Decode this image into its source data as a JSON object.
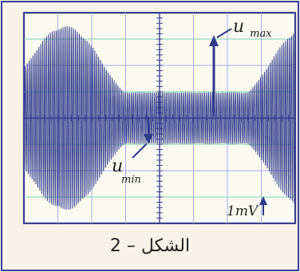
{
  "figure": {
    "caption": "الشكل – 2",
    "labels": {
      "u_max": "u",
      "u_max_sub": "max",
      "u_min": "u",
      "u_min_sub": "min",
      "scale": "1mV"
    },
    "grid": {
      "columns": 8,
      "rows": 8,
      "visible": true
    },
    "colors": {
      "frame": "#3b3f8f",
      "grid_minor": "#a6aee6",
      "grid_green": "#7fd3b6",
      "signal": "#2f3a8a",
      "background": "#f7f3e9"
    }
  }
}
